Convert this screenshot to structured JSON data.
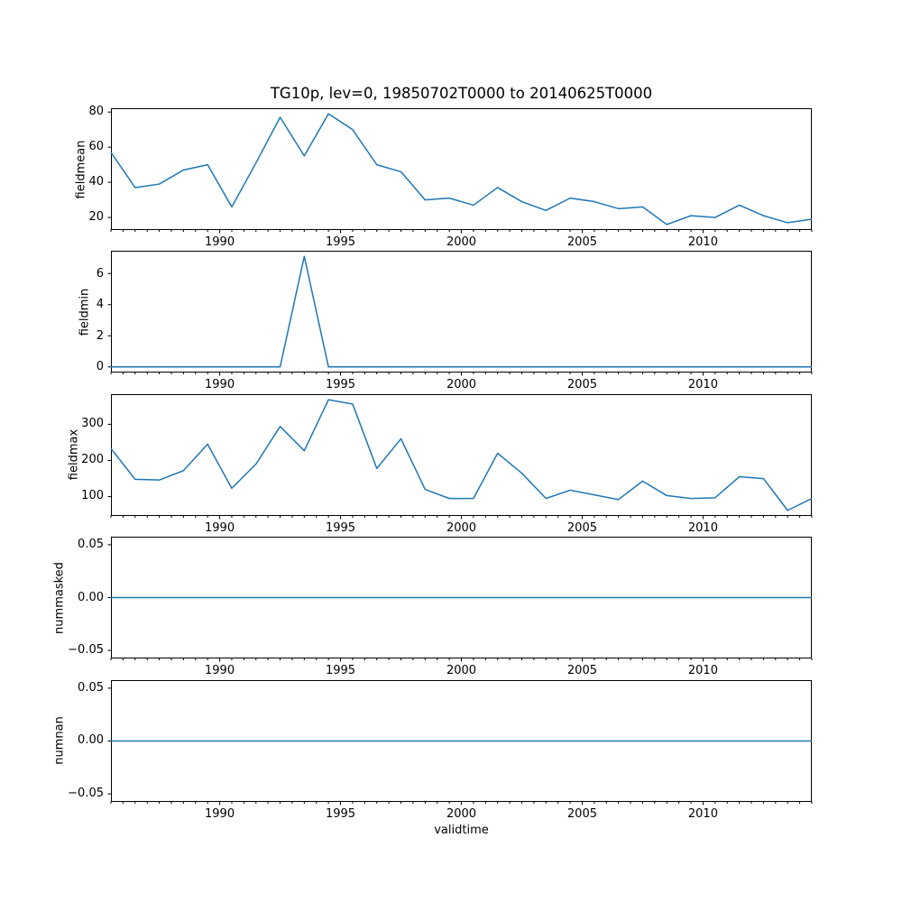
{
  "figure": {
    "title": "TG10p, lev=0, 19850702T0000 to 20140625T0000",
    "background_color": "#ffffff",
    "line_color": "#1f77b4",
    "spine_color": "#000000"
  },
  "x_axis": {
    "label": "validtime",
    "xlim": [
      1985.5,
      2014.5
    ],
    "major_ticks": [
      1990,
      1995,
      2000,
      2005,
      2010
    ],
    "major_tick_labels": [
      "1990",
      "1995",
      "2000",
      "2005",
      "2010"
    ],
    "minor_tick_step": 0.5
  },
  "chart_data": [
    {
      "type": "line",
      "ylabel": "fieldmean",
      "legend": "none",
      "grid": false,
      "x": [
        1985.5,
        1986.5,
        1987.5,
        1988.5,
        1989.5,
        1990.5,
        1991.5,
        1992.5,
        1993.5,
        1994.5,
        1995.5,
        1996.5,
        1997.5,
        1998.5,
        1999.5,
        2000.5,
        2001.5,
        2002.5,
        2003.5,
        2004.5,
        2005.5,
        2006.5,
        2007.5,
        2008.5,
        2009.5,
        2010.5,
        2011.5,
        2012.5,
        2013.5,
        2014.5
      ],
      "values": [
        57,
        37,
        39,
        47,
        50,
        26,
        51,
        77,
        55,
        79,
        70,
        50,
        46,
        30,
        31,
        27,
        37,
        29,
        24,
        31,
        29,
        25,
        26,
        16,
        21,
        20,
        27,
        21,
        17,
        19
      ],
      "yticks": [
        20,
        40,
        60,
        80
      ],
      "ytick_labels": [
        "20",
        "40",
        "60",
        "80"
      ],
      "ylim": [
        12.85,
        82.15
      ]
    },
    {
      "type": "line",
      "ylabel": "fieldmin",
      "legend": "none",
      "grid": false,
      "x": [
        1985.5,
        1986.5,
        1987.5,
        1988.5,
        1989.5,
        1990.5,
        1991.5,
        1992.5,
        1993.5,
        1994.5,
        1995.5,
        1996.5,
        1997.5,
        1998.5,
        1999.5,
        2000.5,
        2001.5,
        2002.5,
        2003.5,
        2004.5,
        2005.5,
        2006.5,
        2007.5,
        2008.5,
        2009.5,
        2010.5,
        2011.5,
        2012.5,
        2013.5,
        2014.5
      ],
      "values": [
        0,
        0,
        0,
        0,
        0,
        0,
        0,
        0,
        7.1,
        0,
        0,
        0,
        0,
        0,
        0,
        0,
        0,
        0,
        0,
        0,
        0,
        0,
        0,
        0,
        0,
        0,
        0,
        0,
        0,
        0
      ],
      "yticks": [
        0,
        2,
        4,
        6
      ],
      "ytick_labels": [
        "0",
        "2",
        "4",
        "6"
      ],
      "ylim": [
        -0.36,
        7.46
      ]
    },
    {
      "type": "line",
      "ylabel": "fieldmax",
      "legend": "none",
      "grid": false,
      "x": [
        1985.5,
        1986.5,
        1987.5,
        1988.5,
        1989.5,
        1990.5,
        1991.5,
        1992.5,
        1993.5,
        1994.5,
        1995.5,
        1996.5,
        1997.5,
        1998.5,
        1999.5,
        2000.5,
        2001.5,
        2002.5,
        2003.5,
        2004.5,
        2005.5,
        2006.5,
        2007.5,
        2008.5,
        2009.5,
        2010.5,
        2011.5,
        2012.5,
        2013.5,
        2014.5
      ],
      "values": [
        233,
        148,
        146,
        172,
        245,
        123,
        190,
        294,
        227,
        368,
        356,
        178,
        260,
        120,
        95,
        95,
        220,
        165,
        95,
        118,
        105,
        92,
        143,
        103,
        95,
        97,
        155,
        150,
        62,
        95
      ],
      "yticks": [
        100,
        200,
        300
      ],
      "ytick_labels": [
        "100",
        "200",
        "300"
      ],
      "ylim": [
        46.7,
        383.3
      ]
    },
    {
      "type": "line",
      "ylabel": "nummasked",
      "legend": "none",
      "grid": false,
      "x": [
        1985.5,
        1986.5,
        1987.5,
        1988.5,
        1989.5,
        1990.5,
        1991.5,
        1992.5,
        1993.5,
        1994.5,
        1995.5,
        1996.5,
        1997.5,
        1998.5,
        1999.5,
        2000.5,
        2001.5,
        2002.5,
        2003.5,
        2004.5,
        2005.5,
        2006.5,
        2007.5,
        2008.5,
        2009.5,
        2010.5,
        2011.5,
        2012.5,
        2013.5,
        2014.5
      ],
      "values": [
        0,
        0,
        0,
        0,
        0,
        0,
        0,
        0,
        0,
        0,
        0,
        0,
        0,
        0,
        0,
        0,
        0,
        0,
        0,
        0,
        0,
        0,
        0,
        0,
        0,
        0,
        0,
        0,
        0,
        0
      ],
      "yticks": [
        -0.05,
        0,
        0.05
      ],
      "ytick_labels": [
        "−0.05",
        "0.00",
        "0.05"
      ],
      "ylim": [
        -0.0576,
        0.0576
      ]
    },
    {
      "type": "line",
      "ylabel": "numnan",
      "legend": "none",
      "grid": false,
      "x": [
        1985.5,
        1986.5,
        1987.5,
        1988.5,
        1989.5,
        1990.5,
        1991.5,
        1992.5,
        1993.5,
        1994.5,
        1995.5,
        1996.5,
        1997.5,
        1998.5,
        1999.5,
        2000.5,
        2001.5,
        2002.5,
        2003.5,
        2004.5,
        2005.5,
        2006.5,
        2007.5,
        2008.5,
        2009.5,
        2010.5,
        2011.5,
        2012.5,
        2013.5,
        2014.5
      ],
      "values": [
        0,
        0,
        0,
        0,
        0,
        0,
        0,
        0,
        0,
        0,
        0,
        0,
        0,
        0,
        0,
        0,
        0,
        0,
        0,
        0,
        0,
        0,
        0,
        0,
        0,
        0,
        0,
        0,
        0,
        0
      ],
      "yticks": [
        -0.05,
        0,
        0.05
      ],
      "ytick_labels": [
        "−0.05",
        "0.00",
        "0.05"
      ],
      "ylim": [
        -0.0576,
        0.0576
      ]
    }
  ]
}
